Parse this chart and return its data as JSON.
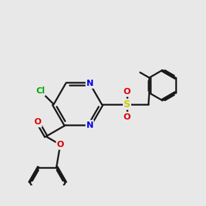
{
  "bg_color": "#e8e8e8",
  "bond_color": "#1a1a1a",
  "bond_width": 1.8,
  "dbo": 0.055,
  "atom_colors": {
    "N": "#0000ee",
    "O": "#dd0000",
    "Cl": "#00aa00",
    "S": "#cccc00",
    "C": "#1a1a1a"
  },
  "font_size": 9,
  "fig_size": [
    3.0,
    3.0
  ],
  "dpi": 100
}
